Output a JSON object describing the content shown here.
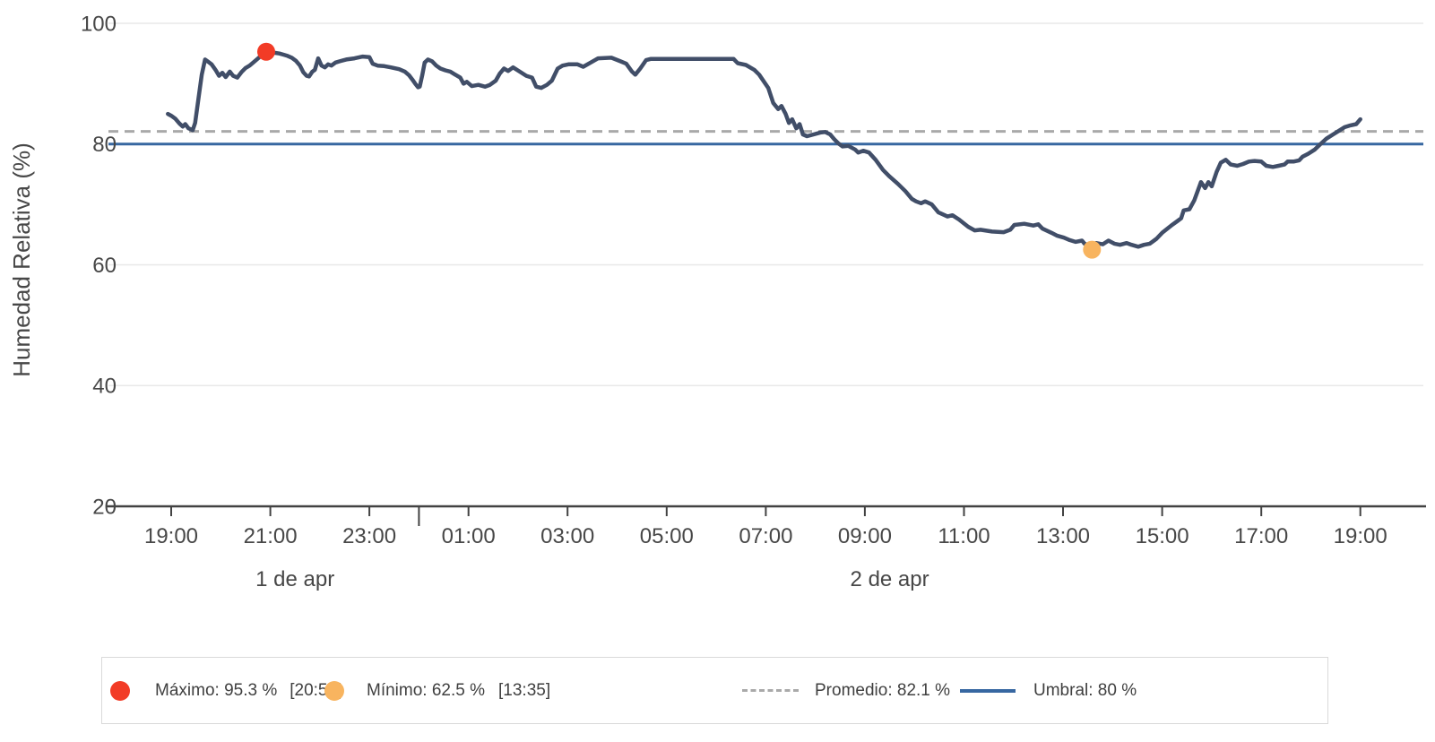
{
  "chart_data": {
    "type": "line",
    "title": "",
    "xlabel": "",
    "ylabel": "Humedad Relativa (%)",
    "ylim": [
      20,
      100
    ],
    "y_ticks": [
      100,
      80,
      60,
      40,
      20
    ],
    "grid_values": [
      100,
      60,
      40
    ],
    "x_tick_labels": [
      "19:00",
      "21:00",
      "23:00",
      "01:00",
      "03:00",
      "05:00",
      "07:00",
      "09:00",
      "11:00",
      "13:00",
      "15:00",
      "17:00",
      "19:00"
    ],
    "x_tick_hours": [
      0,
      2,
      4,
      6,
      8,
      10,
      12,
      14,
      16,
      18,
      20,
      22,
      24
    ],
    "day_boundary_hour": 5,
    "date_labels": [
      {
        "label": "1 de apr",
        "from_hour": 0,
        "to_hour": 5
      },
      {
        "label": "2 de apr",
        "from_hour": 5,
        "to_hour": 24
      }
    ],
    "line_color": "#414e68",
    "reference_lines": [
      {
        "name": "promedio",
        "value": 82.1,
        "style": "dashed",
        "color": "#a9a9a9"
      },
      {
        "name": "umbral",
        "value": 80,
        "style": "solid",
        "color": "#3767a1"
      }
    ],
    "markers": [
      {
        "name": "maximo",
        "value": 95.3,
        "time": "20:55",
        "t_min": 115,
        "color": "#f23b26"
      },
      {
        "name": "minimo",
        "value": 62.5,
        "time": "13:35",
        "t_min": 1115,
        "color": "#f8b45f"
      }
    ],
    "series": [
      {
        "name": "Humedad Relativa",
        "points": [
          [
            -4,
            85.0
          ],
          [
            0,
            84.7
          ],
          [
            5,
            84.2
          ],
          [
            10,
            83.4
          ],
          [
            14,
            82.9
          ],
          [
            17,
            83.3
          ],
          [
            21,
            82.6
          ],
          [
            26,
            82.3
          ],
          [
            29,
            83.5
          ],
          [
            33,
            87.5
          ],
          [
            37,
            91.5
          ],
          [
            41,
            94.0
          ],
          [
            45,
            93.6
          ],
          [
            49,
            93.2
          ],
          [
            54,
            92.2
          ],
          [
            58,
            91.3
          ],
          [
            62,
            91.8
          ],
          [
            66,
            91.1
          ],
          [
            71,
            92.0
          ],
          [
            75,
            91.3
          ],
          [
            80,
            91.0
          ],
          [
            85,
            91.9
          ],
          [
            90,
            92.6
          ],
          [
            95,
            93.0
          ],
          [
            101,
            93.7
          ],
          [
            107,
            94.4
          ],
          [
            111,
            94.8
          ],
          [
            115,
            95.3
          ],
          [
            120,
            95.2
          ],
          [
            126,
            95.1
          ],
          [
            131,
            95.0
          ],
          [
            136,
            94.8
          ],
          [
            141,
            94.6
          ],
          [
            146,
            94.3
          ],
          [
            151,
            93.8
          ],
          [
            156,
            93.0
          ],
          [
            160,
            91.9
          ],
          [
            164,
            91.3
          ],
          [
            167,
            91.2
          ],
          [
            171,
            92.0
          ],
          [
            174,
            92.3
          ],
          [
            178,
            94.2
          ],
          [
            182,
            93.0
          ],
          [
            186,
            92.7
          ],
          [
            190,
            93.2
          ],
          [
            194,
            93.0
          ],
          [
            199,
            93.5
          ],
          [
            204,
            93.7
          ],
          [
            212,
            94.0
          ],
          [
            222,
            94.2
          ],
          [
            232,
            94.5
          ],
          [
            240,
            94.4
          ],
          [
            244,
            93.3
          ],
          [
            250,
            93.0
          ],
          [
            258,
            92.9
          ],
          [
            266,
            92.7
          ],
          [
            276,
            92.4
          ],
          [
            283,
            92.0
          ],
          [
            288,
            91.4
          ],
          [
            292,
            90.7
          ],
          [
            296,
            89.9
          ],
          [
            299,
            89.4
          ],
          [
            301,
            89.5
          ],
          [
            304,
            91.4
          ],
          [
            307,
            93.5
          ],
          [
            311,
            94.0
          ],
          [
            316,
            93.7
          ],
          [
            321,
            93.0
          ],
          [
            326,
            92.5
          ],
          [
            332,
            92.2
          ],
          [
            338,
            92.0
          ],
          [
            344,
            91.5
          ],
          [
            350,
            91.0
          ],
          [
            354,
            90.0
          ],
          [
            358,
            90.3
          ],
          [
            364,
            89.6
          ],
          [
            372,
            89.8
          ],
          [
            380,
            89.5
          ],
          [
            386,
            89.8
          ],
          [
            393,
            90.5
          ],
          [
            398,
            91.7
          ],
          [
            403,
            92.5
          ],
          [
            408,
            92.1
          ],
          [
            414,
            92.7
          ],
          [
            422,
            92.0
          ],
          [
            430,
            91.3
          ],
          [
            437,
            91.0
          ],
          [
            442,
            89.5
          ],
          [
            448,
            89.3
          ],
          [
            455,
            89.8
          ],
          [
            461,
            90.5
          ],
          [
            468,
            92.5
          ],
          [
            474,
            93.0
          ],
          [
            481,
            93.2
          ],
          [
            492,
            93.2
          ],
          [
            499,
            92.8
          ],
          [
            508,
            93.5
          ],
          [
            517,
            94.2
          ],
          [
            533,
            94.3
          ],
          [
            544,
            93.7
          ],
          [
            551,
            93.3
          ],
          [
            558,
            92.0
          ],
          [
            562,
            91.5
          ],
          [
            568,
            92.5
          ],
          [
            575,
            93.9
          ],
          [
            581,
            94.1
          ],
          [
            610,
            94.1
          ],
          [
            640,
            94.1
          ],
          [
            681,
            94.1
          ],
          [
            686,
            93.4
          ],
          [
            696,
            93.1
          ],
          [
            706,
            92.3
          ],
          [
            712,
            91.5
          ],
          [
            723,
            89.3
          ],
          [
            729,
            86.8
          ],
          [
            735,
            85.8
          ],
          [
            739,
            86.3
          ],
          [
            744,
            85.0
          ],
          [
            748,
            83.5
          ],
          [
            752,
            84.1
          ],
          [
            757,
            82.6
          ],
          [
            761,
            83.3
          ],
          [
            765,
            81.6
          ],
          [
            770,
            81.3
          ],
          [
            778,
            81.6
          ],
          [
            786,
            81.9
          ],
          [
            792,
            82.0
          ],
          [
            798,
            81.6
          ],
          [
            803,
            80.8
          ],
          [
            808,
            80.1
          ],
          [
            813,
            79.6
          ],
          [
            820,
            79.7
          ],
          [
            828,
            79.1
          ],
          [
            832,
            78.6
          ],
          [
            838,
            78.9
          ],
          [
            845,
            78.6
          ],
          [
            853,
            77.4
          ],
          [
            862,
            75.7
          ],
          [
            870,
            74.6
          ],
          [
            880,
            73.4
          ],
          [
            889,
            72.2
          ],
          [
            897,
            70.9
          ],
          [
            902,
            70.5
          ],
          [
            908,
            70.2
          ],
          [
            913,
            70.5
          ],
          [
            921,
            70.0
          ],
          [
            929,
            68.7
          ],
          [
            940,
            68.0
          ],
          [
            946,
            68.2
          ],
          [
            954,
            67.5
          ],
          [
            965,
            66.3
          ],
          [
            973,
            65.7
          ],
          [
            980,
            65.8
          ],
          [
            994,
            65.5
          ],
          [
            1008,
            65.4
          ],
          [
            1016,
            65.8
          ],
          [
            1021,
            66.6
          ],
          [
            1033,
            66.8
          ],
          [
            1044,
            66.5
          ],
          [
            1050,
            66.7
          ],
          [
            1055,
            66.0
          ],
          [
            1066,
            65.3
          ],
          [
            1073,
            64.8
          ],
          [
            1081,
            64.5
          ],
          [
            1088,
            64.1
          ],
          [
            1095,
            63.8
          ],
          [
            1103,
            64.0
          ],
          [
            1106,
            63.5
          ],
          [
            1112,
            63.1
          ],
          [
            1115,
            62.5
          ],
          [
            1120,
            63.6
          ],
          [
            1128,
            63.4
          ],
          [
            1135,
            64.0
          ],
          [
            1142,
            63.5
          ],
          [
            1149,
            63.3
          ],
          [
            1157,
            63.6
          ],
          [
            1163,
            63.3
          ],
          [
            1171,
            63.0
          ],
          [
            1178,
            63.3
          ],
          [
            1185,
            63.5
          ],
          [
            1193,
            64.3
          ],
          [
            1200,
            65.3
          ],
          [
            1211,
            66.5
          ],
          [
            1218,
            67.2
          ],
          [
            1223,
            67.7
          ],
          [
            1226,
            69.0
          ],
          [
            1233,
            69.2
          ],
          [
            1239,
            70.7
          ],
          [
            1247,
            73.7
          ],
          [
            1252,
            72.7
          ],
          [
            1256,
            73.7
          ],
          [
            1260,
            73.0
          ],
          [
            1266,
            75.4
          ],
          [
            1271,
            76.9
          ],
          [
            1277,
            77.4
          ],
          [
            1283,
            76.6
          ],
          [
            1291,
            76.4
          ],
          [
            1298,
            76.7
          ],
          [
            1305,
            77.1
          ],
          [
            1312,
            77.2
          ],
          [
            1320,
            77.1
          ],
          [
            1326,
            76.4
          ],
          [
            1334,
            76.2
          ],
          [
            1341,
            76.4
          ],
          [
            1348,
            76.6
          ],
          [
            1352,
            77.1
          ],
          [
            1359,
            77.1
          ],
          [
            1366,
            77.3
          ],
          [
            1370,
            77.9
          ],
          [
            1377,
            78.4
          ],
          [
            1385,
            79.1
          ],
          [
            1391,
            79.9
          ],
          [
            1399,
            80.9
          ],
          [
            1407,
            81.6
          ],
          [
            1413,
            82.1
          ],
          [
            1421,
            82.8
          ],
          [
            1428,
            83.1
          ],
          [
            1435,
            83.3
          ],
          [
            1440,
            84.1
          ]
        ]
      }
    ],
    "legend_position": "bottom"
  },
  "legend": {
    "items": [
      {
        "label": "Máximo: 95.3 %",
        "time": "[20:55]",
        "color": "#f23b26",
        "marker": "dot"
      },
      {
        "label": "Mínimo: 62.5 %",
        "time": "[13:35]",
        "color": "#f8b45f",
        "marker": "dot"
      },
      {
        "label": "Promedio: 82.1 %",
        "color": "#a9a9a9",
        "marker": "dashed-line"
      },
      {
        "label": "Umbral: 80 %",
        "color": "#3767a1",
        "marker": "solid-line"
      }
    ]
  }
}
